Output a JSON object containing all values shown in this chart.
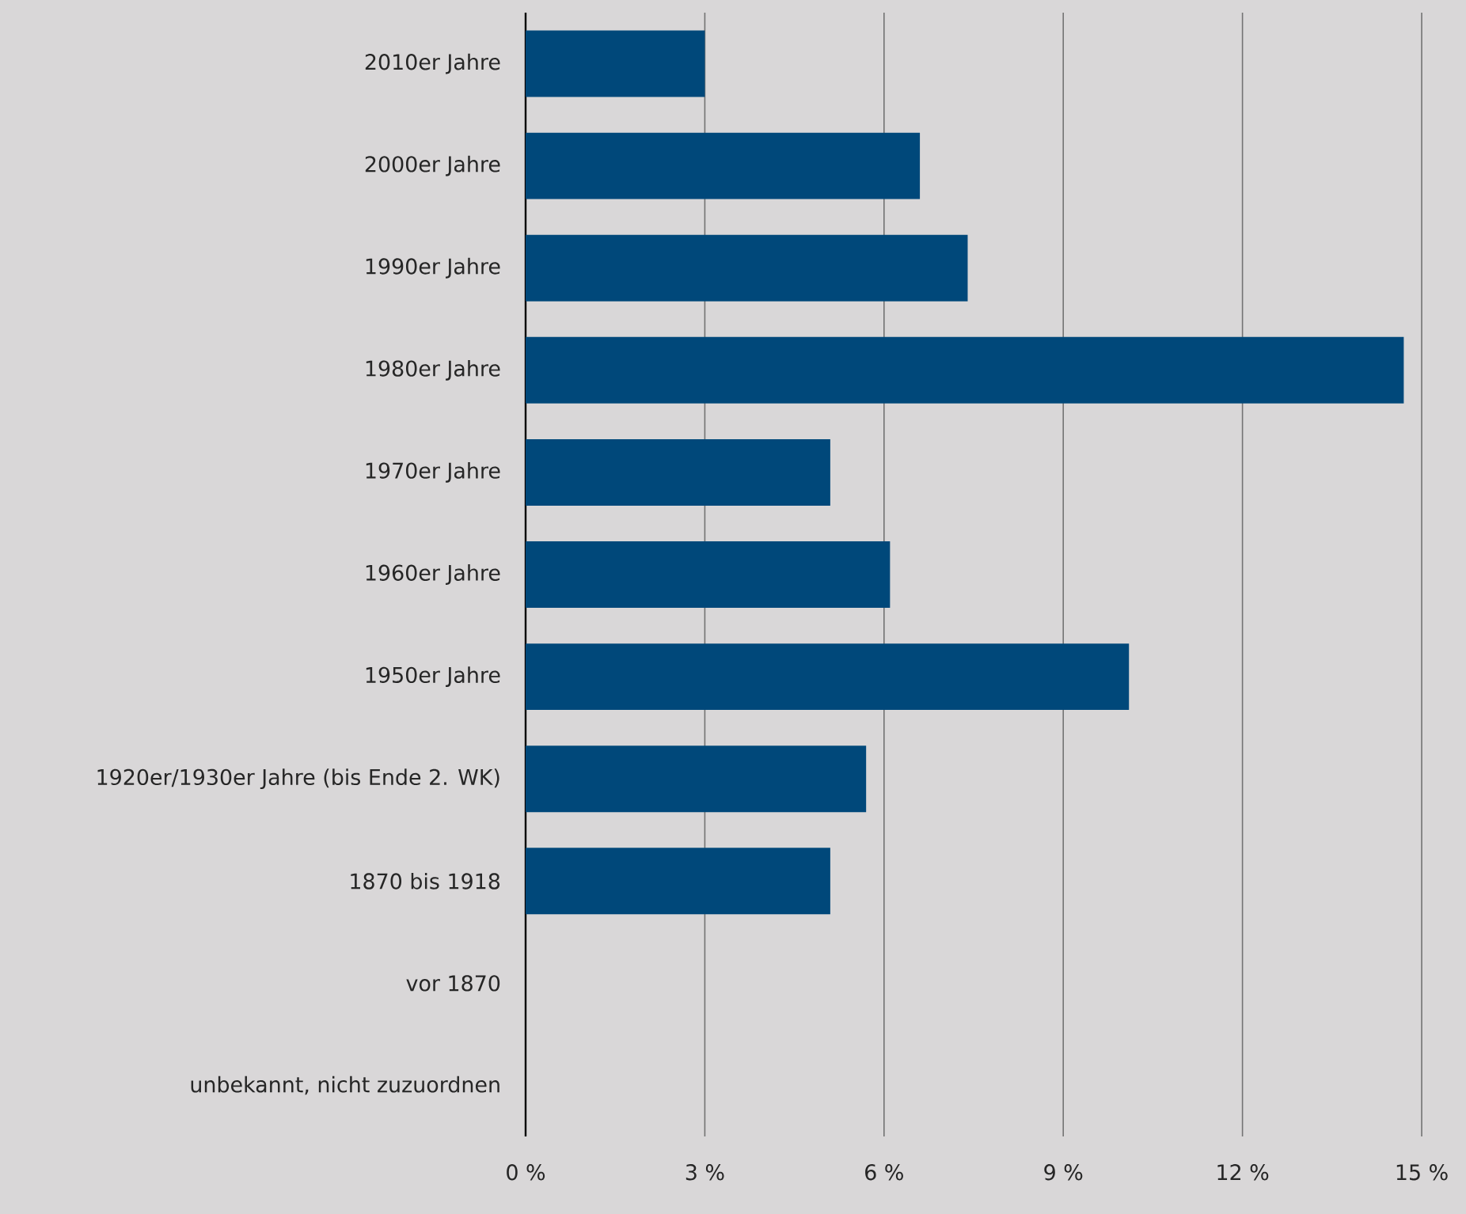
{
  "chart_data": {
    "type": "bar",
    "orientation": "horizontal",
    "categories": [
      "2010er Jahre",
      "2000er Jahre",
      "1990er Jahre",
      "1980er Jahre",
      "1970er Jahre",
      "1960er Jahre",
      "1950er Jahre",
      "1920er/1930er Jahre (bis Ende 2. WK)",
      "1870 bis 1918",
      "vor 1870",
      "unbekannt, nicht zuzuordnen"
    ],
    "values": [
      3.0,
      6.6,
      7.4,
      14.7,
      5.1,
      6.1,
      10.1,
      5.7,
      5.1,
      0,
      0
    ],
    "color": "#00487a",
    "xlim": [
      0,
      15
    ],
    "xticks": [
      {
        "value": 0,
        "label": "0 %"
      },
      {
        "value": 3,
        "label": "3 %"
      },
      {
        "value": 6,
        "label": "6 %"
      },
      {
        "value": 9,
        "label": "9 %"
      },
      {
        "value": 12,
        "label": "12 %"
      },
      {
        "value": 15,
        "label": "15 %"
      }
    ],
    "grid": "x"
  }
}
